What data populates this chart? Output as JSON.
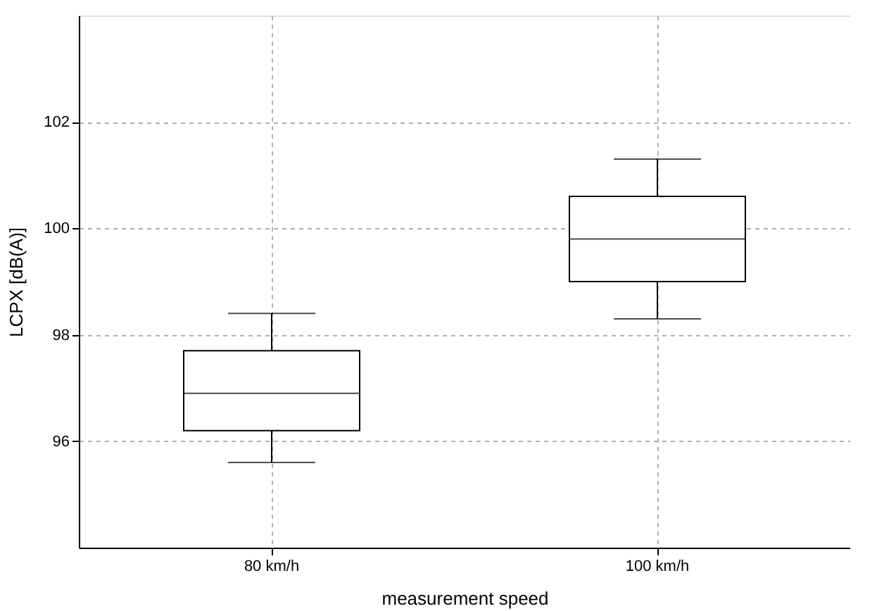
{
  "chart_data": {
    "type": "box",
    "xlabel": "measurement speed",
    "ylabel": "LCPX [dB(A)]",
    "categories": [
      "80 km/h",
      "100 km/h"
    ],
    "boxes": [
      {
        "low": 95.6,
        "q1": 96.2,
        "median": 96.9,
        "q3": 97.7,
        "high": 98.4
      },
      {
        "low": 98.3,
        "q1": 99.0,
        "median": 99.8,
        "q3": 100.6,
        "high": 101.3
      }
    ],
    "color": "#ffffff",
    "ylim": [
      94,
      104
    ],
    "yticks": [
      96,
      98,
      100,
      102
    ],
    "grid": true
  }
}
